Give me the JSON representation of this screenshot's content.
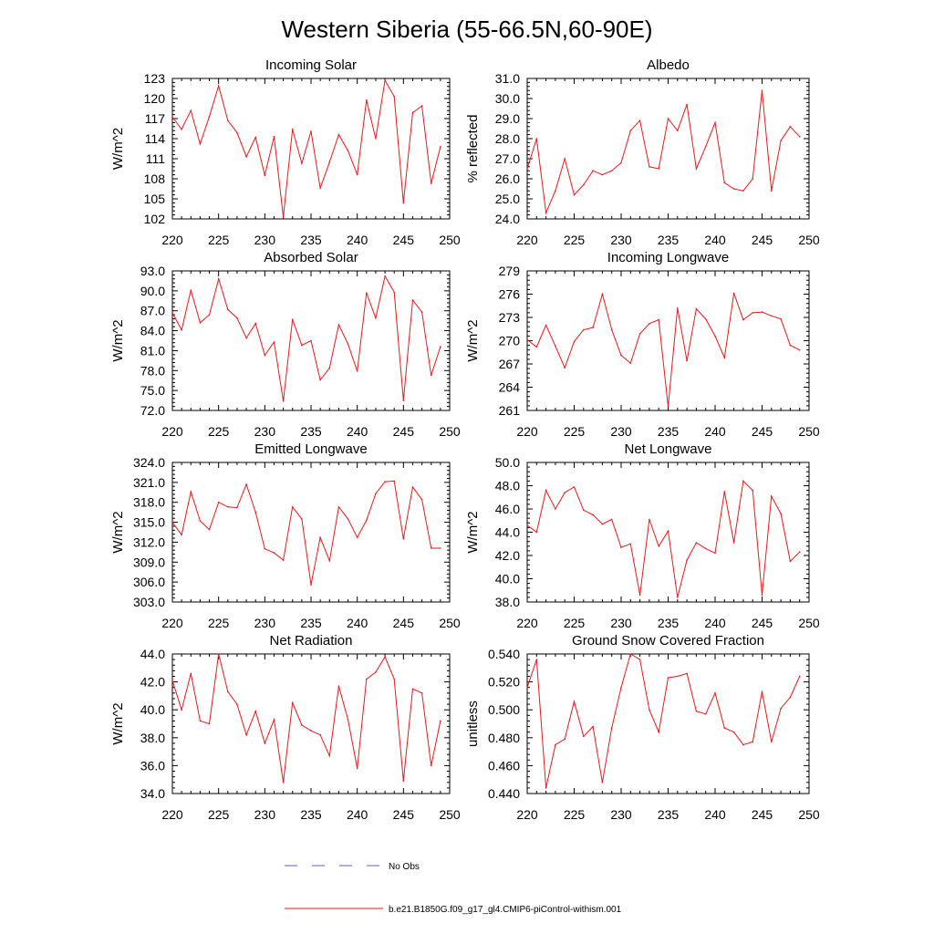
{
  "title": "Western Siberia (55-66.5N,60-90E)",
  "legend": {
    "obs_label": "No Obs",
    "obs_color": "#5060c8",
    "model_label": "b.e21.B1850G.f09_g17_gl4.CMIP6-piControl-withism.001",
    "model_color": "#e8191e"
  },
  "chart_data": [
    {
      "type": "line",
      "title": "Incoming Solar",
      "ylabel": "W/m^2",
      "xlim": [
        220,
        250
      ],
      "ylim": [
        102,
        123
      ],
      "xticks": [
        220,
        225,
        230,
        235,
        240,
        245,
        250
      ],
      "xtick_labels": [
        "220",
        "225",
        "230",
        "235",
        "240",
        "245",
        "250"
      ],
      "yticks": [
        102,
        105,
        108,
        111,
        114,
        117,
        120,
        123
      ],
      "ytick_labels": [
        "102",
        "105",
        "108",
        "111",
        "114",
        "117",
        "120",
        "123"
      ],
      "x": [
        220,
        221,
        222,
        223,
        224,
        225,
        226,
        227,
        228,
        229,
        230,
        231,
        232,
        233,
        234,
        235,
        236,
        237,
        238,
        239,
        240,
        241,
        242,
        243,
        244,
        245,
        246,
        247,
        248,
        249
      ],
      "values": [
        117.2,
        115.4,
        118.2,
        113.2,
        117.3,
        121.9,
        116.7,
        114.9,
        111.3,
        114.2,
        108.5,
        114.3,
        102.3,
        115.4,
        110.3,
        115.1,
        106.6,
        110.5,
        114.6,
        112.2,
        108.6,
        119.8,
        114.0,
        122.7,
        120.3,
        104.4,
        117.9,
        118.9,
        107.3,
        112.8
      ]
    },
    {
      "type": "line",
      "title": "Albedo",
      "ylabel": "% reflected",
      "xlim": [
        220,
        250
      ],
      "ylim": [
        24.0,
        31.0
      ],
      "xticks": [
        220,
        225,
        230,
        235,
        240,
        245,
        250
      ],
      "xtick_labels": [
        "220",
        "225",
        "230",
        "235",
        "240",
        "245",
        "250"
      ],
      "yticks": [
        24,
        25,
        26,
        27,
        28,
        29,
        30,
        31
      ],
      "ytick_labels": [
        "24.0",
        "25.0",
        "26.0",
        "27.0",
        "28.0",
        "29.0",
        "30.0",
        "31.0"
      ],
      "x": [
        220,
        221,
        222,
        223,
        224,
        225,
        226,
        227,
        228,
        229,
        230,
        231,
        232,
        233,
        234,
        235,
        236,
        237,
        238,
        239,
        240,
        241,
        242,
        243,
        244,
        245,
        246,
        247,
        248,
        249
      ],
      "values": [
        26.5,
        28.0,
        24.3,
        25.4,
        27.0,
        25.2,
        25.7,
        26.4,
        26.2,
        26.4,
        26.8,
        28.4,
        28.9,
        26.6,
        26.5,
        29.0,
        28.4,
        29.7,
        26.5,
        27.6,
        28.8,
        25.8,
        25.5,
        25.4,
        26.0,
        30.4,
        25.4,
        27.9,
        28.6,
        28.1
      ]
    },
    {
      "type": "line",
      "title": "Absorbed Solar",
      "ylabel": "W/m^2",
      "xlim": [
        220,
        250
      ],
      "ylim": [
        72.0,
        93.0
      ],
      "xticks": [
        220,
        225,
        230,
        235,
        240,
        245,
        250
      ],
      "xtick_labels": [
        "220",
        "225",
        "230",
        "235",
        "240",
        "245",
        "250"
      ],
      "yticks": [
        72,
        75,
        78,
        81,
        84,
        87,
        90,
        93
      ],
      "ytick_labels": [
        "72.0",
        "75.0",
        "78.0",
        "81.0",
        "84.0",
        "87.0",
        "90.0",
        "93.0"
      ],
      "x": [
        220,
        221,
        222,
        223,
        224,
        225,
        226,
        227,
        228,
        229,
        230,
        231,
        232,
        233,
        234,
        235,
        236,
        237,
        238,
        239,
        240,
        241,
        242,
        243,
        244,
        245,
        246,
        247,
        248,
        249
      ],
      "values": [
        86.7,
        84.1,
        90.1,
        85.2,
        86.4,
        91.8,
        87.2,
        85.9,
        82.9,
        85.1,
        80.3,
        82.3,
        73.4,
        85.7,
        81.8,
        82.5,
        76.6,
        78.4,
        84.9,
        82.0,
        77.9,
        89.7,
        85.9,
        92.2,
        89.8,
        73.5,
        88.6,
        86.8,
        77.3,
        81.6
      ]
    },
    {
      "type": "line",
      "title": "Incoming Longwave",
      "ylabel": "W/m^2",
      "xlim": [
        220,
        250
      ],
      "ylim": [
        261,
        279
      ],
      "xticks": [
        220,
        225,
        230,
        235,
        240,
        245,
        250
      ],
      "xtick_labels": [
        "220",
        "225",
        "230",
        "235",
        "240",
        "245",
        "250"
      ],
      "yticks": [
        261,
        264,
        267,
        270,
        273,
        276,
        279
      ],
      "ytick_labels": [
        "261",
        "264",
        "267",
        "270",
        "273",
        "276",
        "279"
      ],
      "x": [
        220,
        221,
        222,
        223,
        224,
        225,
        226,
        227,
        228,
        229,
        230,
        231,
        232,
        233,
        234,
        235,
        236,
        237,
        238,
        239,
        240,
        241,
        242,
        243,
        244,
        245,
        246,
        247,
        248,
        249
      ],
      "values": [
        270.1,
        269.2,
        272.0,
        269.3,
        266.5,
        269.9,
        271.4,
        271.7,
        276.0,
        271.4,
        268.1,
        267.1,
        270.9,
        272.2,
        272.7,
        261.5,
        274.2,
        267.4,
        274.1,
        272.8,
        270.6,
        267.8,
        276.1,
        272.7,
        273.6,
        273.7,
        273.2,
        272.8,
        269.4,
        268.8
      ]
    },
    {
      "type": "line",
      "title": "Emitted Longwave",
      "ylabel": "W/m^2",
      "xlim": [
        220,
        250
      ],
      "ylim": [
        303.0,
        324.0
      ],
      "xticks": [
        220,
        225,
        230,
        235,
        240,
        245,
        250
      ],
      "xtick_labels": [
        "220",
        "225",
        "230",
        "235",
        "240",
        "245",
        "250"
      ],
      "yticks": [
        303,
        306,
        309,
        312,
        315,
        318,
        321,
        324
      ],
      "ytick_labels": [
        "303.0",
        "306.0",
        "309.0",
        "312.0",
        "315.0",
        "318.0",
        "321.0",
        "324.0"
      ],
      "x": [
        220,
        221,
        222,
        223,
        224,
        225,
        226,
        227,
        228,
        229,
        230,
        231,
        232,
        233,
        234,
        235,
        236,
        237,
        238,
        239,
        240,
        241,
        242,
        243,
        244,
        245,
        246,
        247,
        248,
        249
      ],
      "values": [
        315.0,
        313.1,
        319.6,
        315.2,
        313.9,
        318.0,
        317.3,
        317.2,
        320.7,
        316.5,
        311.0,
        310.4,
        309.3,
        317.3,
        315.5,
        305.6,
        312.7,
        309.2,
        317.3,
        315.5,
        312.7,
        315.3,
        319.3,
        321.1,
        321.2,
        312.5,
        320.3,
        318.4,
        311.1,
        311.1
      ]
    },
    {
      "type": "line",
      "title": "Net Longwave",
      "ylabel": "W/m^2",
      "xlim": [
        220,
        250
      ],
      "ylim": [
        38.0,
        50.0
      ],
      "xticks": [
        220,
        225,
        230,
        235,
        240,
        245,
        250
      ],
      "xtick_labels": [
        "220",
        "225",
        "230",
        "235",
        "240",
        "245",
        "250"
      ],
      "yticks": [
        38,
        40,
        42,
        44,
        46,
        48,
        50
      ],
      "ytick_labels": [
        "38.0",
        "40.0",
        "42.0",
        "44.0",
        "46.0",
        "48.0",
        "50.0"
      ],
      "x": [
        220,
        221,
        222,
        223,
        224,
        225,
        226,
        227,
        228,
        229,
        230,
        231,
        232,
        233,
        234,
        235,
        236,
        237,
        238,
        239,
        240,
        241,
        242,
        243,
        244,
        245,
        246,
        247,
        248,
        249
      ],
      "values": [
        44.6,
        44.0,
        47.6,
        46.0,
        47.4,
        47.9,
        45.9,
        45.5,
        44.7,
        45.1,
        42.7,
        43.0,
        38.6,
        45.1,
        42.8,
        44.1,
        38.4,
        41.6,
        43.1,
        42.6,
        42.2,
        47.5,
        43.1,
        48.4,
        47.6,
        38.6,
        47.1,
        45.6,
        41.5,
        42.3
      ]
    },
    {
      "type": "line",
      "title": "Net Radiation",
      "ylabel": "W/m^2",
      "xlim": [
        220,
        250
      ],
      "ylim": [
        34.0,
        44.0
      ],
      "xticks": [
        220,
        225,
        230,
        235,
        240,
        245,
        250
      ],
      "xtick_labels": [
        "220",
        "225",
        "230",
        "235",
        "240",
        "245",
        "250"
      ],
      "yticks": [
        34,
        36,
        38,
        40,
        42,
        44
      ],
      "ytick_labels": [
        "34.0",
        "36.0",
        "38.0",
        "40.0",
        "42.0",
        "44.0"
      ],
      "x": [
        220,
        221,
        222,
        223,
        224,
        225,
        226,
        227,
        228,
        229,
        230,
        231,
        232,
        233,
        234,
        235,
        236,
        237,
        238,
        239,
        240,
        241,
        242,
        243,
        244,
        245,
        246,
        247,
        248,
        249
      ],
      "values": [
        42.1,
        40.0,
        42.6,
        39.2,
        39.0,
        44.0,
        41.3,
        40.4,
        38.2,
        39.9,
        37.6,
        39.3,
        34.8,
        40.5,
        38.9,
        38.5,
        38.2,
        36.7,
        41.7,
        39.3,
        35.8,
        42.2,
        42.7,
        43.8,
        42.2,
        34.9,
        41.5,
        41.2,
        36.0,
        39.2
      ]
    },
    {
      "type": "line",
      "title": "Ground Snow Covered Fraction",
      "ylabel": "unitless",
      "xlim": [
        220,
        250
      ],
      "ylim": [
        0.44,
        0.54
      ],
      "xticks": [
        220,
        225,
        230,
        235,
        240,
        245,
        250
      ],
      "xtick_labels": [
        "220",
        "225",
        "230",
        "235",
        "240",
        "245",
        "250"
      ],
      "yticks": [
        0.44,
        0.46,
        0.48,
        0.5,
        0.52,
        0.54
      ],
      "ytick_labels": [
        "0.440",
        "0.460",
        "0.480",
        "0.500",
        "0.520",
        "0.540"
      ],
      "x": [
        220,
        221,
        222,
        223,
        224,
        225,
        226,
        227,
        228,
        229,
        230,
        231,
        232,
        233,
        234,
        235,
        236,
        237,
        238,
        239,
        240,
        241,
        242,
        243,
        244,
        245,
        246,
        247,
        248,
        249
      ],
      "values": [
        0.516,
        0.536,
        0.444,
        0.475,
        0.479,
        0.506,
        0.481,
        0.488,
        0.448,
        0.487,
        0.516,
        0.54,
        0.536,
        0.5,
        0.484,
        0.523,
        0.524,
        0.526,
        0.499,
        0.497,
        0.512,
        0.487,
        0.484,
        0.475,
        0.477,
        0.513,
        0.477,
        0.501,
        0.509,
        0.524
      ]
    }
  ]
}
